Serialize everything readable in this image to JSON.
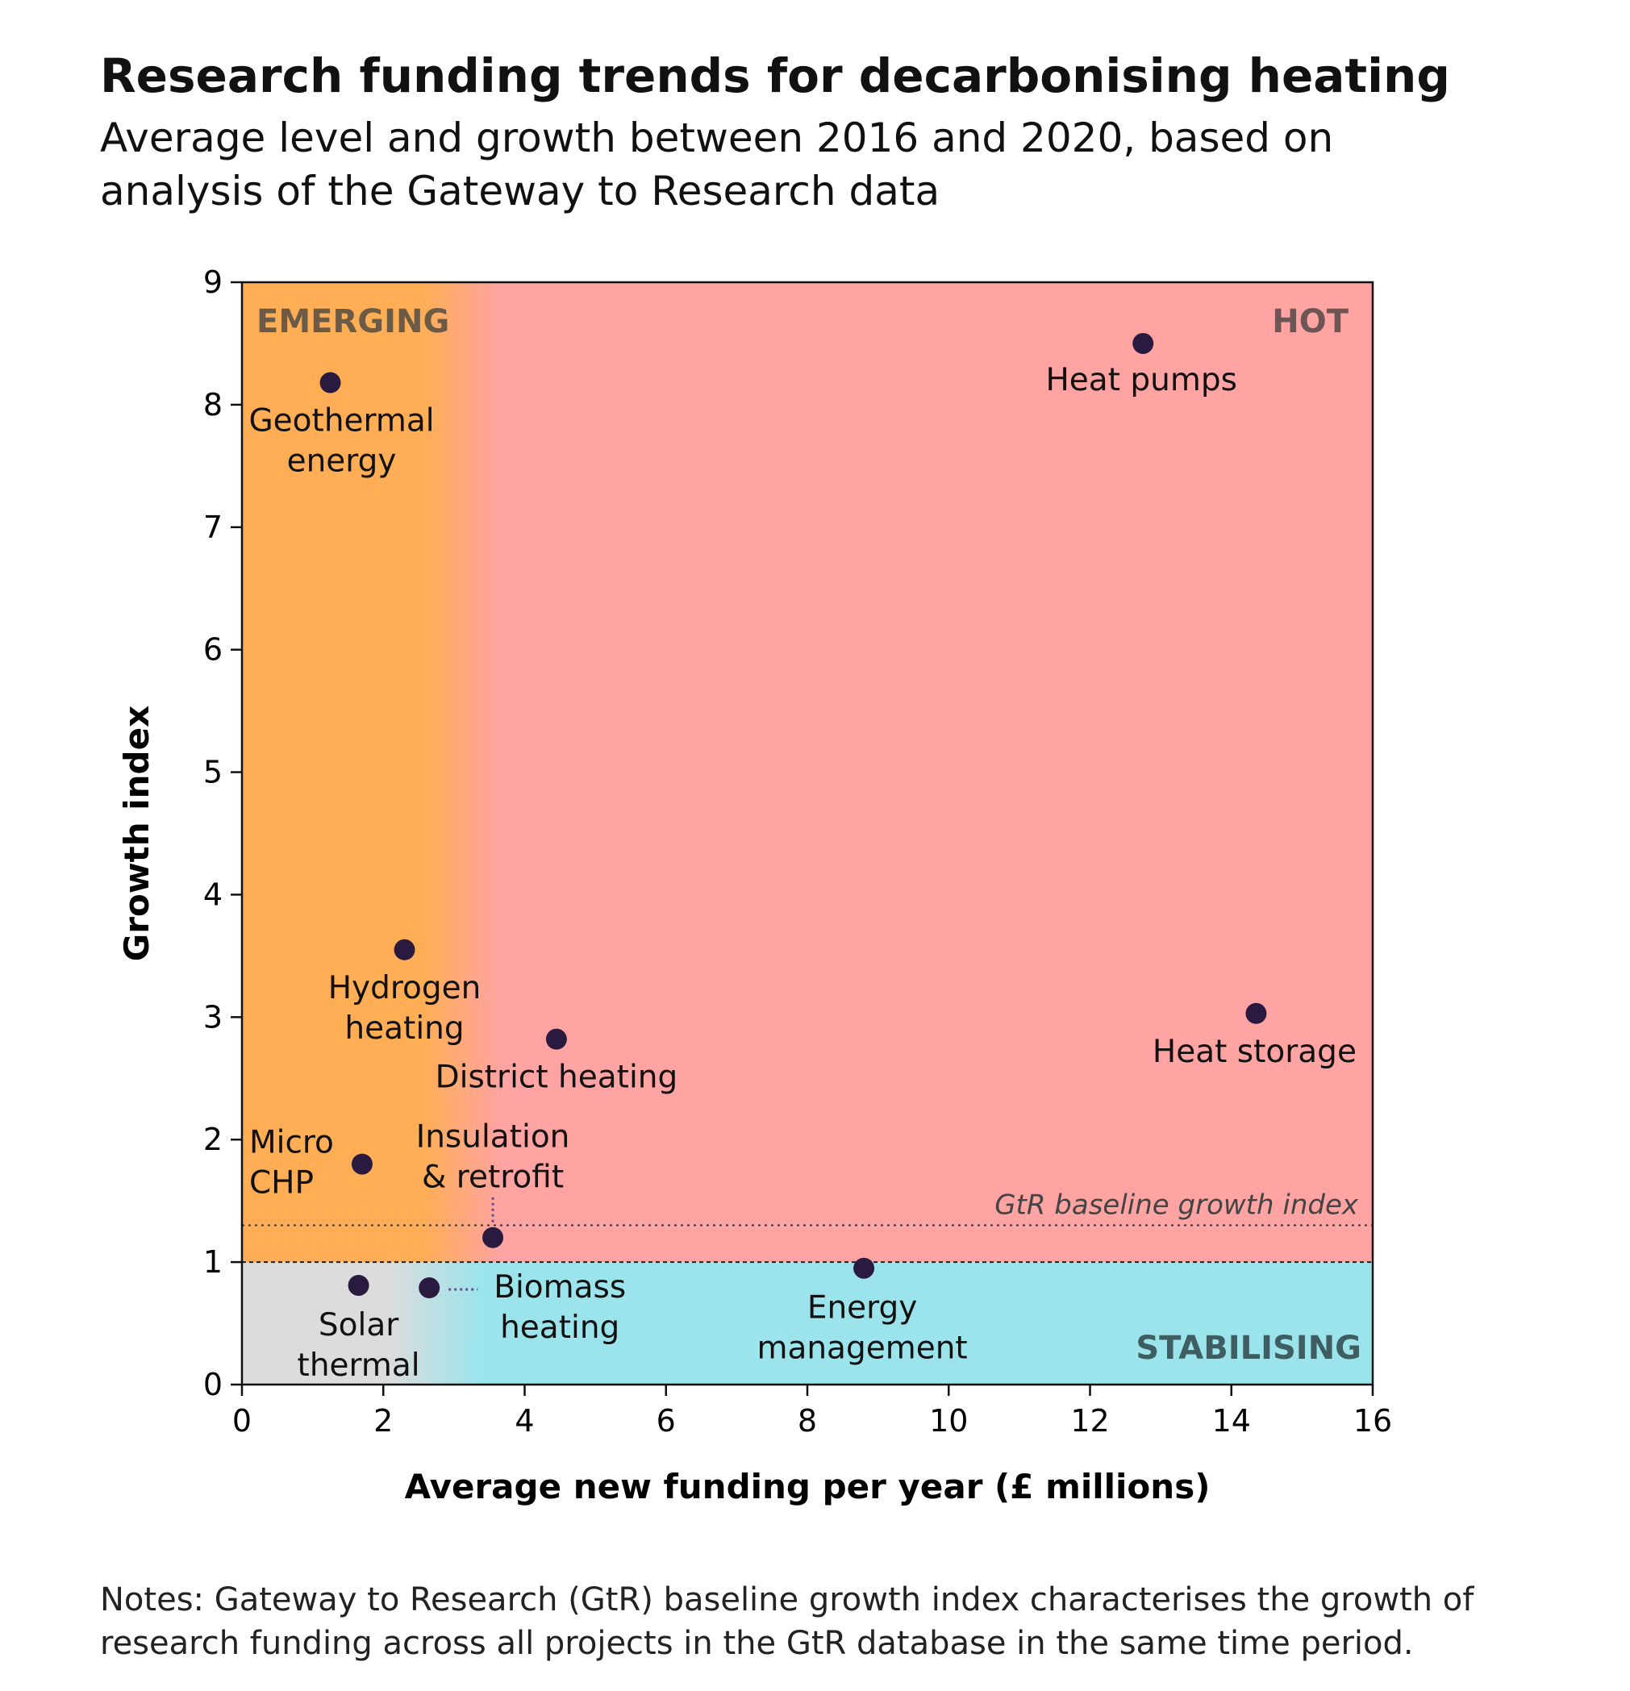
{
  "title": "Research funding trends for decarbonising heating",
  "subtitle": "Average level and growth between 2016 and 2020, based on analysis of the Gateway to Research data",
  "notes": "Notes: Gateway to Research (GtR) baseline growth index characterises the growth of research funding across all projects in the GtR database in the same time period.",
  "chart_data": {
    "type": "scatter",
    "xlabel": "Average new funding per year (£ millions)",
    "ylabel": "Growth index",
    "xlim": [
      0,
      16
    ],
    "ylim": [
      0,
      9
    ],
    "xticks": [
      0,
      2,
      4,
      6,
      8,
      10,
      12,
      14,
      16
    ],
    "yticks": [
      0,
      1,
      2,
      3,
      4,
      5,
      6,
      7,
      8,
      9
    ],
    "grid": false,
    "regions": [
      {
        "label": "EMERGING",
        "color": "#FFAE55"
      },
      {
        "label": "HOT",
        "color": "#FFA3A3"
      },
      {
        "label": "STABILISING",
        "color": "#9CE4EC"
      }
    ],
    "reference_lines": [
      {
        "label": "GtR baseline growth index",
        "y": 1.3,
        "style": "dotted"
      },
      {
        "label": "",
        "y": 1.0,
        "style": "dashed"
      }
    ],
    "points": [
      {
        "label": "Geothermal energy",
        "x": 1.25,
        "y": 8.18
      },
      {
        "label": "Heat pumps",
        "x": 12.75,
        "y": 8.5
      },
      {
        "label": "Hydrogen heating",
        "x": 2.3,
        "y": 3.55
      },
      {
        "label": "District heating",
        "x": 4.45,
        "y": 2.82
      },
      {
        "label": "Heat storage",
        "x": 14.35,
        "y": 3.03
      },
      {
        "label": "Micro CHP",
        "x": 1.7,
        "y": 1.8
      },
      {
        "label": "Insulation & retrofit",
        "x": 3.55,
        "y": 1.2
      },
      {
        "label": "Energy management",
        "x": 8.8,
        "y": 0.95
      },
      {
        "label": "Solar thermal",
        "x": 1.65,
        "y": 0.81
      },
      {
        "label": "Biomass heating",
        "x": 2.65,
        "y": 0.79
      }
    ],
    "point_color": "#2A1A40"
  }
}
